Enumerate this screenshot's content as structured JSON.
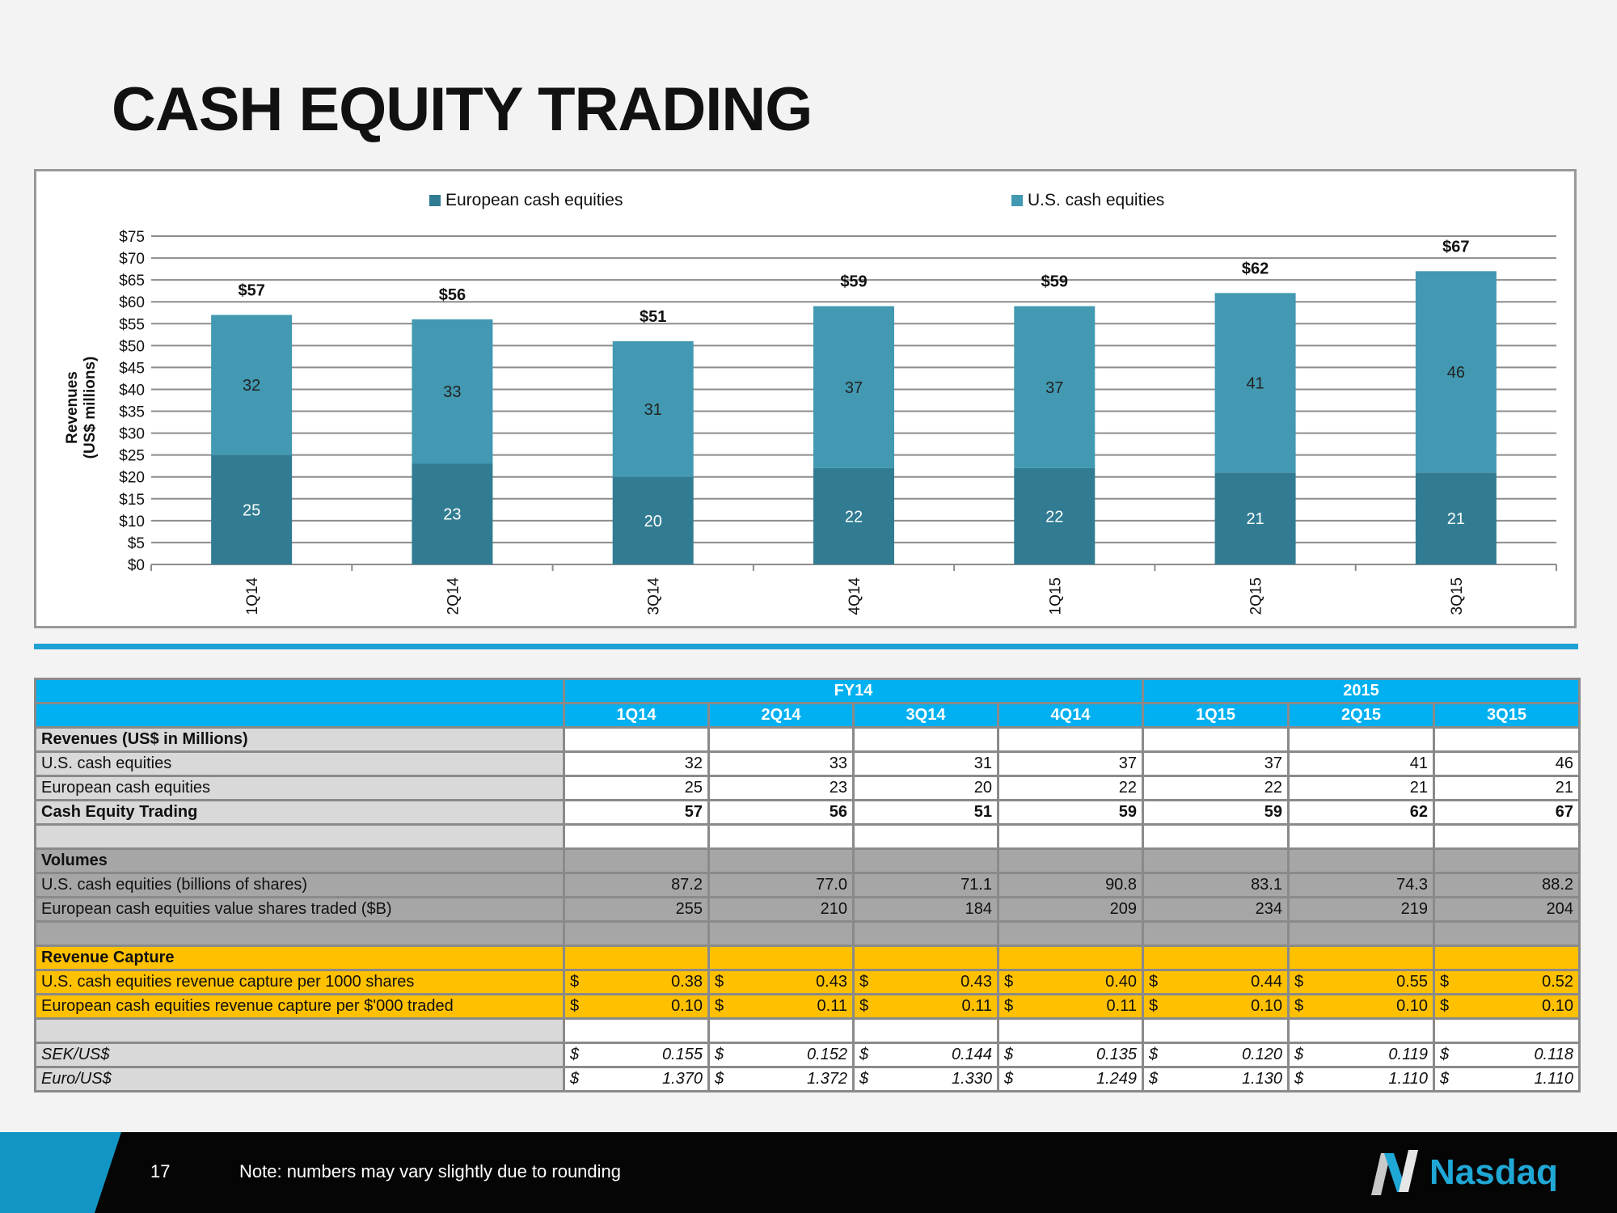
{
  "title": "CASH EQUITY TRADING",
  "chart_data": {
    "type": "bar",
    "stacked": true,
    "categories": [
      "1Q14",
      "2Q14",
      "3Q14",
      "4Q14",
      "1Q15",
      "2Q15",
      "3Q15"
    ],
    "series": [
      {
        "name": "European cash equities",
        "values": [
          25,
          23,
          20,
          22,
          22,
          21,
          21
        ],
        "color": "#317c92"
      },
      {
        "name": "U.S. cash equities",
        "values": [
          32,
          33,
          31,
          37,
          37,
          41,
          46
        ],
        "color": "#4299b1"
      }
    ],
    "totals": [
      "$57",
      "$56",
      "$51",
      "$59",
      "$59",
      "$62",
      "$67"
    ],
    "ylabel": "Revenues\n(US$ millions)",
    "ylabel_lines": [
      "Revenues",
      "(US$ millions)"
    ],
    "ylim": [
      0,
      75
    ],
    "ytick_labels": [
      "$0",
      "$5",
      "$10",
      "$15",
      "$20",
      "$25",
      "$30",
      "$35",
      "$40",
      "$45",
      "$50",
      "$55",
      "$60",
      "$65",
      "$70",
      "$75"
    ],
    "grid": true,
    "legend_position": "top"
  },
  "table": {
    "fy_headers": [
      "FY14",
      "2015"
    ],
    "quarters": [
      "1Q14",
      "2Q14",
      "3Q14",
      "4Q14",
      "1Q15",
      "2Q15",
      "3Q15"
    ],
    "revenues_section": "Revenues (US$ in Millions)",
    "revenues_rows": [
      {
        "label": "U.S. cash equities",
        "values": [
          "32",
          "33",
          "31",
          "37",
          "37",
          "41",
          "46"
        ]
      },
      {
        "label": "European cash equities",
        "values": [
          "25",
          "23",
          "20",
          "22",
          "22",
          "21",
          "21"
        ]
      },
      {
        "label": "Cash Equity Trading",
        "values": [
          "57",
          "56",
          "51",
          "59",
          "59",
          "62",
          "67"
        ],
        "bold": true
      }
    ],
    "volumes_section": "Volumes",
    "volumes_rows": [
      {
        "label": "U.S. cash equities (billions of shares)",
        "values": [
          "87.2",
          "77.0",
          "71.1",
          "90.8",
          "83.1",
          "74.3",
          "88.2"
        ]
      },
      {
        "label": "European cash equities value shares traded ($B)",
        "values": [
          "255",
          "210",
          "184",
          "209",
          "234",
          "219",
          "204"
        ]
      }
    ],
    "capture_section": "Revenue Capture",
    "capture_rows": [
      {
        "label": "U.S. cash equities revenue capture per 1000 shares",
        "values": [
          "0.38",
          "0.43",
          "0.43",
          "0.40",
          "0.44",
          "0.55",
          "0.52"
        ]
      },
      {
        "label": "European cash equities revenue capture per $'000 traded",
        "values": [
          "0.10",
          "0.11",
          "0.11",
          "0.11",
          "0.10",
          "0.10",
          "0.10"
        ]
      }
    ],
    "fx_rows": [
      {
        "label": "SEK/US$",
        "values": [
          "0.155",
          "0.152",
          "0.144",
          "0.135",
          "0.120",
          "0.119",
          "0.118"
        ]
      },
      {
        "label": "Euro/US$",
        "values": [
          "1.370",
          "1.372",
          "1.330",
          "1.249",
          "1.130",
          "1.110",
          "1.110"
        ]
      }
    ],
    "currency_symbol": "$"
  },
  "footer": {
    "page_number": "17",
    "note": "Note: numbers may vary slightly due to rounding",
    "logo_text": "Nasdaq"
  }
}
